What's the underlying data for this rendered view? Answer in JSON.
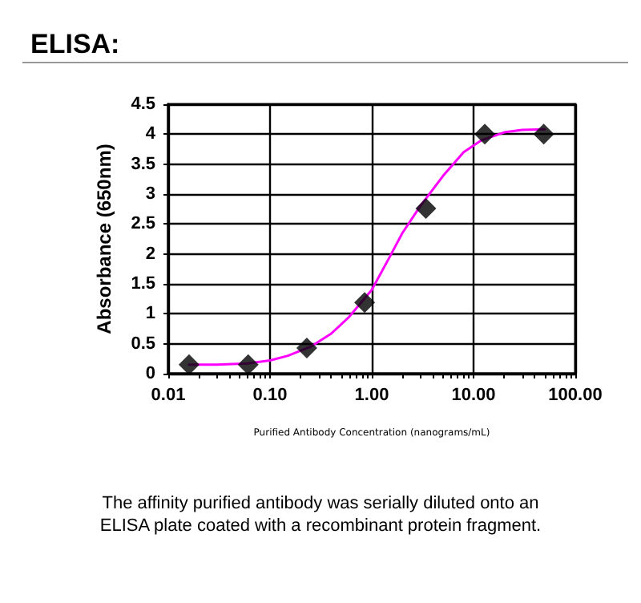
{
  "chart_data": {
    "type": "scatter",
    "title": "ELISA:",
    "xlabel": "Purified Antibody Concentration (nanograms/mL)",
    "ylabel": "Absorbance (650nm)",
    "annotations": [
      "The affinity purified antibody was serially diluted onto an\nELISA plate coated with a recombinant protein fragment."
    ],
    "log": "x",
    "grid": true,
    "xlim": [
      0.01,
      100
    ],
    "xticks": [
      {
        "value": 0.01,
        "label": "0.01"
      },
      {
        "value": 0.1,
        "label": "0.10"
      },
      {
        "value": 1,
        "label": "1.00"
      },
      {
        "value": 10,
        "label": "10.00"
      },
      {
        "value": 100,
        "label": "100.00"
      }
    ],
    "ylim": [
      0,
      4.5
    ],
    "yticks": [
      0,
      0.5,
      1,
      1.5,
      2,
      2.5,
      3,
      3.5,
      4,
      4.5
    ],
    "series": [
      {
        "type": "line",
        "color": "#ff00ff",
        "marker": "none",
        "line_style": "solid",
        "x": [
          0.016,
          0.03,
          0.06,
          0.1,
          0.15,
          0.25,
          0.4,
          0.6,
          1,
          1.5,
          2,
          3,
          5,
          8,
          12,
          20,
          30,
          50
        ],
        "values": [
          0.15,
          0.15,
          0.17,
          0.22,
          0.3,
          0.45,
          0.67,
          0.95,
          1.4,
          1.95,
          2.35,
          2.8,
          3.3,
          3.7,
          3.9,
          4.03,
          4.07,
          4.08
        ]
      },
      {
        "color": "#000000",
        "marker": "diamond",
        "x": [
          0.016,
          0.061,
          0.23,
          0.85,
          3.4,
          12.9,
          49
        ],
        "values": [
          0.15,
          0.15,
          0.43,
          1.19,
          2.76,
          4.0,
          4.0
        ]
      }
    ]
  }
}
